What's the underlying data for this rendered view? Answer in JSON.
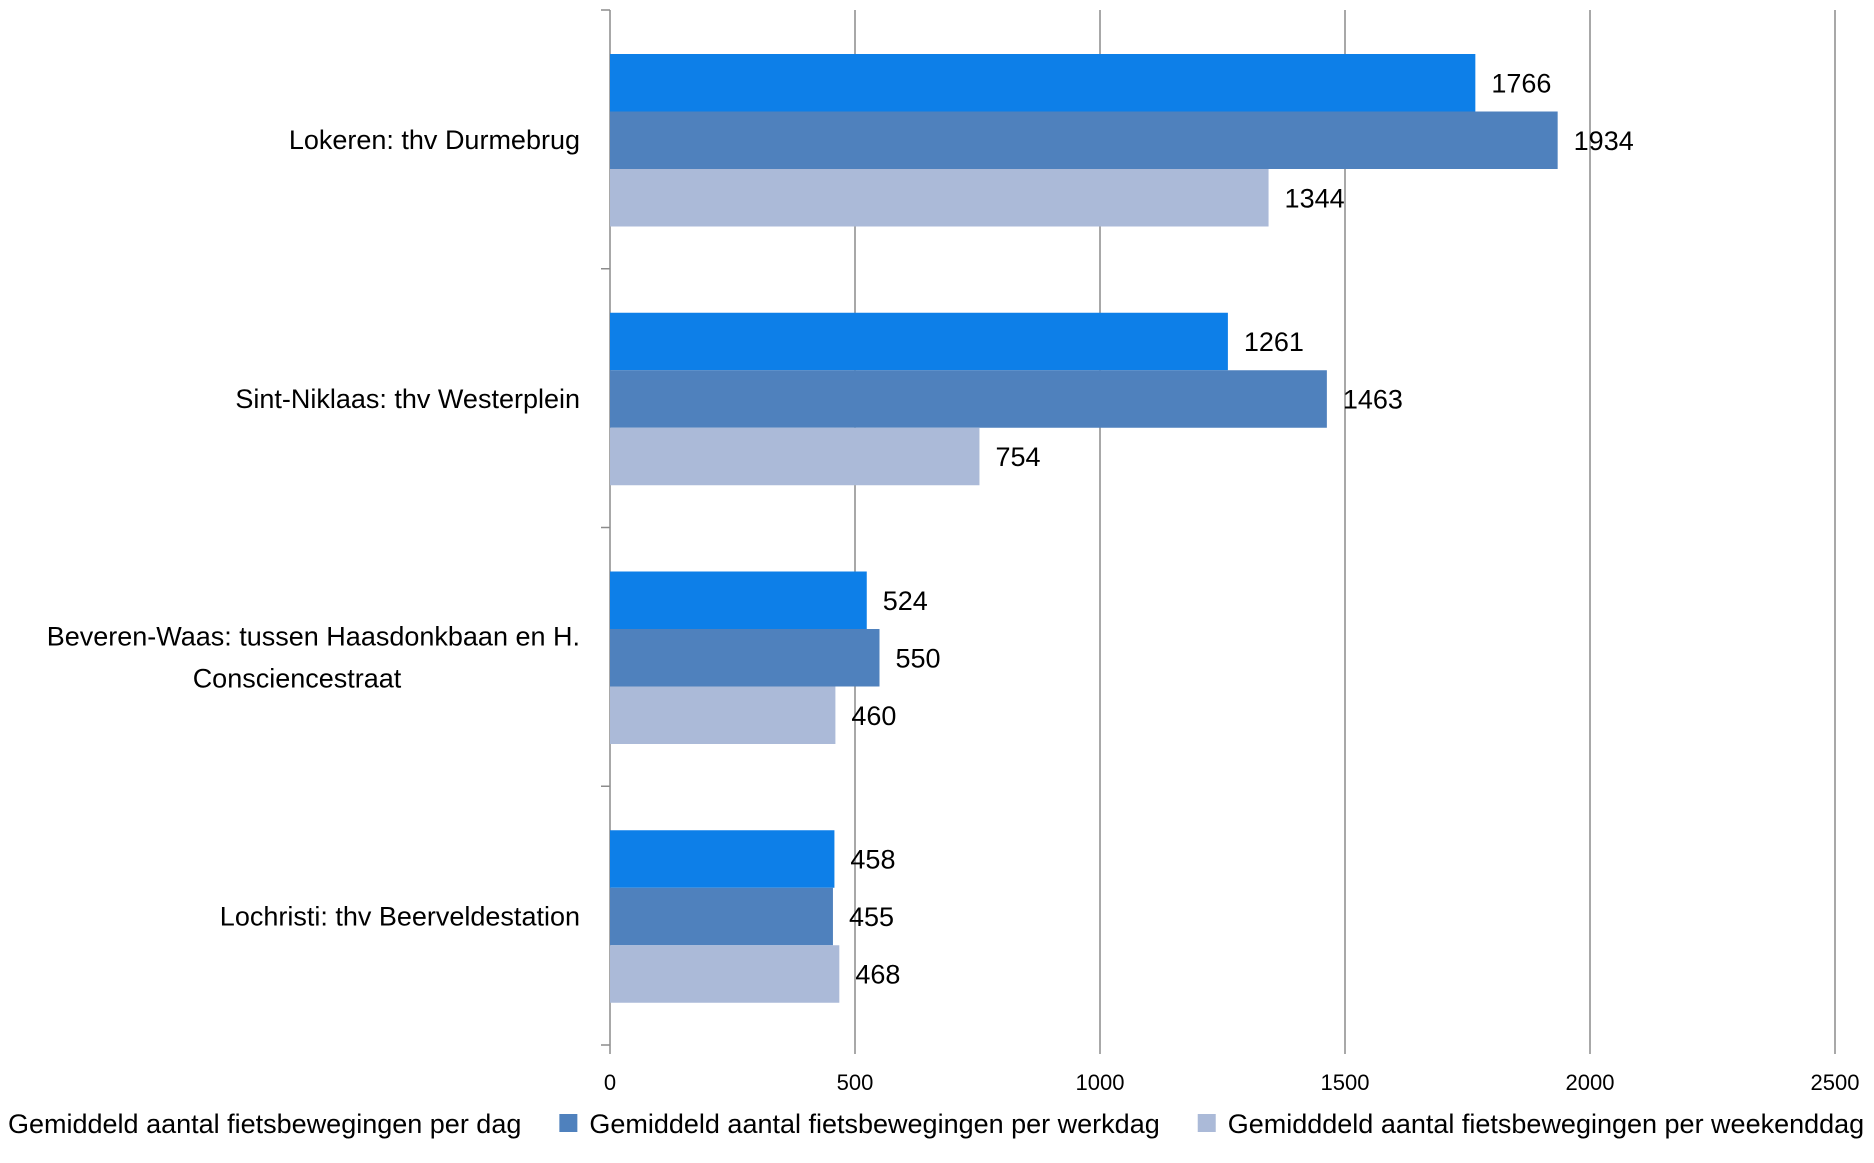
{
  "chart_data": {
    "type": "bar",
    "orientation": "horizontal",
    "title": "",
    "xlabel": "",
    "ylabel": "",
    "categories": [
      "Lokeren: thv Durmebrug",
      "Sint-Niklaas: thv Westerplein",
      "Beveren-Waas: tussen Haasdonkbaan en H. Consciencestraat",
      "Lochristi: thv Beerveldestation"
    ],
    "series": [
      {
        "name": "Gemiddeld aantal fietsbewegingen per dag",
        "color": "#0d7fe8",
        "values": [
          1766,
          1261,
          524,
          458
        ]
      },
      {
        "name": "Gemiddeld aantal fietsbewegingen per werkdag",
        "color": "#4f81bd",
        "values": [
          1934,
          1463,
          550,
          455
        ]
      },
      {
        "name": "Gemidddeld aantal fietsbewegingen per weekenddag",
        "color": "#abbad8",
        "values": [
          1344,
          754,
          460,
          468
        ]
      }
    ],
    "xlim": [
      0,
      2500
    ],
    "xticks": [
      0,
      500,
      1000,
      1500,
      2000,
      2500
    ],
    "grid": true,
    "data_labels": true,
    "legend_position": "bottom"
  }
}
